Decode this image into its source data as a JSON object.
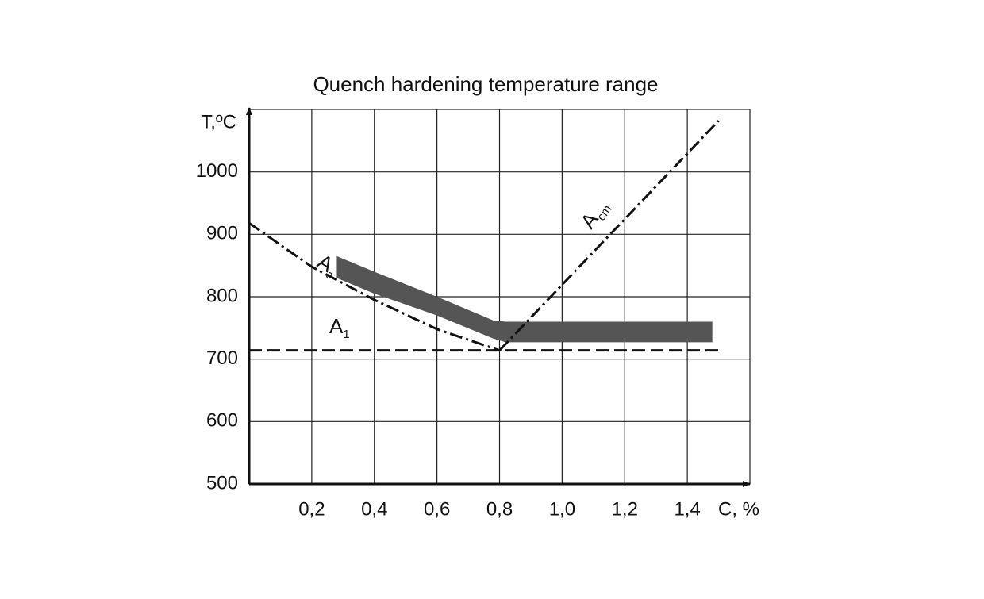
{
  "chart_data": {
    "type": "line",
    "title": "Quench hardening temperature range",
    "y_label": "T,ºC",
    "x_label": "C, %",
    "xlim": [
      0,
      1.6
    ],
    "ylim": [
      500,
      1100
    ],
    "xticks": [
      {
        "value": 0.2,
        "label": "0,2"
      },
      {
        "value": 0.4,
        "label": "0,4"
      },
      {
        "value": 0.6,
        "label": "0,6"
      },
      {
        "value": 0.8,
        "label": "0,8"
      },
      {
        "value": 1.0,
        "label": "1,0"
      },
      {
        "value": 1.2,
        "label": "1,2"
      },
      {
        "value": 1.4,
        "label": "1,4"
      }
    ],
    "yticks": [
      500,
      600,
      700,
      800,
      900,
      1000
    ],
    "grid": true,
    "series": [
      {
        "name": "A",
        "name_sub": "1",
        "color": "#111111",
        "style": "dashed",
        "x": [
          0,
          1.5
        ],
        "values": [
          714,
          714
        ]
      },
      {
        "name": "A",
        "name_sub": "з",
        "color": "#111111",
        "style": "dashdot",
        "x": [
          0,
          0.2,
          0.4,
          0.6,
          0.8
        ],
        "values": [
          918,
          848,
          795,
          748,
          714
        ]
      },
      {
        "name": "A",
        "name_sub": "cm",
        "color": "#111111",
        "style": "dashdot",
        "x": [
          0.8,
          1.5
        ],
        "values": [
          714,
          1082
        ]
      },
      {
        "type": "band",
        "color": "#555555",
        "x": [
          0.28,
          0.4,
          0.6,
          0.78,
          0.82,
          1.48
        ],
        "values": [
          865,
          840,
          800,
          762,
          760,
          760
        ],
        "lower": [
          830,
          805,
          770,
          733,
          727,
          727
        ]
      }
    ]
  }
}
